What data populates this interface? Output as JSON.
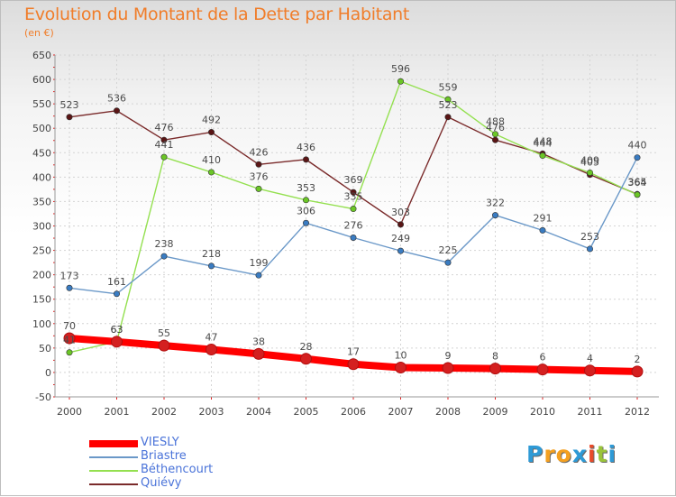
{
  "title": "Evolution du Montant de la Dette par Habitant",
  "subtitle": "(en €)",
  "logo": {
    "letters": [
      "P",
      "r",
      "o",
      "x",
      "i",
      "t",
      "i"
    ],
    "colors": [
      "#2e9ad6",
      "#f4a020",
      "#f4a020",
      "#2e9ad6",
      "#e84b2a",
      "#9ac43a",
      "#2e9ad6"
    ]
  },
  "chart_data": {
    "type": "line",
    "x": [
      "2000",
      "2001",
      "2002",
      "2003",
      "2004",
      "2005",
      "2006",
      "2007",
      "2008",
      "2009",
      "2010",
      "2011",
      "2012"
    ],
    "ylim": [
      -50,
      650
    ],
    "yticks": [
      "-50",
      "0",
      "50",
      "100",
      "150",
      "200",
      "250",
      "300",
      "350",
      "400",
      "450",
      "500",
      "550",
      "600",
      "650"
    ],
    "grid": true,
    "legend_position": "bottom-left",
    "series": [
      {
        "name": "VIESLY",
        "color": "#ff0000",
        "marker": "#d42020",
        "values": [
          70,
          63,
          55,
          47,
          38,
          28,
          17,
          10,
          9,
          8,
          6,
          4,
          2
        ],
        "labels": [
          "70",
          "63",
          "55",
          "47",
          "38",
          "28",
          "17",
          "10",
          "9",
          "8",
          "6",
          "4",
          "2"
        ]
      },
      {
        "name": "Briastre",
        "color": "#6a98c8",
        "marker": "#3a7cc2",
        "values": [
          173,
          161,
          238,
          218,
          199,
          306,
          276,
          249,
          225,
          322,
          291,
          253,
          440
        ],
        "labels": [
          "173",
          "161",
          "238",
          "218",
          "199",
          "306",
          "276",
          "249",
          "225",
          "322",
          "291",
          "253",
          "440"
        ]
      },
      {
        "name": "Béthencourt",
        "color": "#94e050",
        "marker": "#6bc626",
        "values": [
          41,
          63,
          441,
          410,
          376,
          353,
          335,
          596,
          559,
          488,
          444,
          409,
          364
        ],
        "labels": [
          "41",
          "63",
          "441",
          "410",
          "376",
          "353",
          "335",
          "596",
          "559",
          "488",
          "444",
          "409",
          "364"
        ]
      },
      {
        "name": "Quiévy",
        "color": "#7a2a2a",
        "marker": "#5a1515",
        "values": [
          523,
          536,
          476,
          492,
          426,
          436,
          369,
          303,
          523,
          476,
          448,
          405,
          365
        ],
        "labels": [
          "523",
          "536",
          "476",
          "492",
          "426",
          "436",
          "369",
          "303",
          "523",
          "476",
          "448",
          "405",
          "365"
        ]
      }
    ]
  }
}
